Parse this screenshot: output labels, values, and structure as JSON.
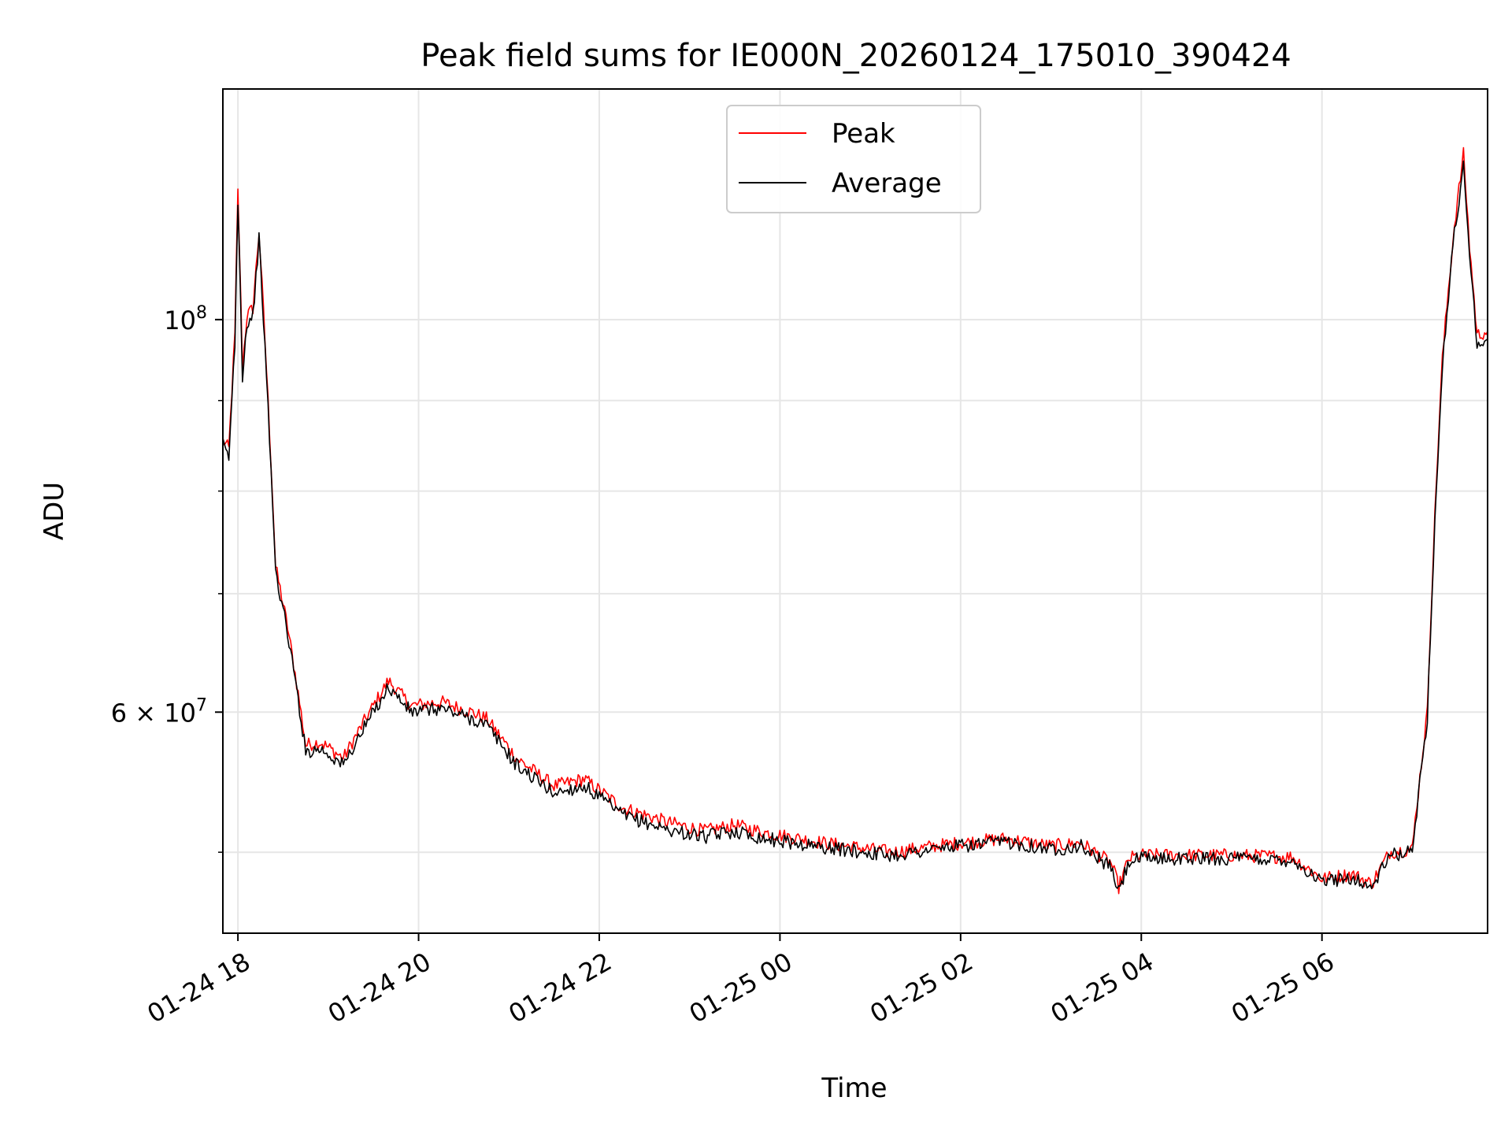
{
  "chart_data": {
    "type": "line",
    "title": "Peak field sums for IE000N_20260124_175010_390424",
    "xlabel": "Time",
    "ylabel": "ADU",
    "y_scale": "log",
    "grid": true,
    "legend_position": "top-center",
    "xlim": [
      "2026-01-24 17:50",
      "2026-01-25 07:50"
    ],
    "ylim": [
      45000000,
      135000000
    ],
    "x_ticks": [
      {
        "value": "2026-01-24 18:00",
        "label": "01-24 18"
      },
      {
        "value": "2026-01-24 20:00",
        "label": "01-24 20"
      },
      {
        "value": "2026-01-24 22:00",
        "label": "01-24 22"
      },
      {
        "value": "2026-01-25 00:00",
        "label": "01-25 00"
      },
      {
        "value": "2026-01-25 02:00",
        "label": "01-25 02"
      },
      {
        "value": "2026-01-25 04:00",
        "label": "01-25 04"
      },
      {
        "value": "2026-01-25 06:00",
        "label": "01-25 06"
      }
    ],
    "y_major_ticks": [
      {
        "value": 100000000,
        "label_base": "10",
        "label_exp": "8"
      },
      {
        "value": 60000000,
        "label_base": "6 × 10",
        "label_exp": "7"
      }
    ],
    "y_minor_ticks": [
      50000000,
      70000000,
      80000000,
      90000000
    ],
    "series": [
      {
        "name": "Peak",
        "color": "#ff0000",
        "points": [
          [
            "2026-01-24 17:50",
            85500000
          ],
          [
            "2026-01-24 17:54",
            84500000
          ],
          [
            "2026-01-24 17:58",
            98000000
          ],
          [
            "2026-01-24 18:00",
            118000000
          ],
          [
            "2026-01-24 18:03",
            94000000
          ],
          [
            "2026-01-24 18:06",
            100500000
          ],
          [
            "2026-01-24 18:10",
            101500000
          ],
          [
            "2026-01-24 18:14",
            112000000
          ],
          [
            "2026-01-24 18:20",
            90000000
          ],
          [
            "2026-01-24 18:25",
            72500000
          ],
          [
            "2026-01-24 18:33",
            67000000
          ],
          [
            "2026-01-24 18:40",
            61500000
          ],
          [
            "2026-01-24 18:45",
            57500000
          ],
          [
            "2026-01-24 18:55",
            57700000
          ],
          [
            "2026-01-24 19:10",
            56500000
          ],
          [
            "2026-01-24 19:25",
            59500000
          ],
          [
            "2026-01-24 19:40",
            62500000
          ],
          [
            "2026-01-24 19:55",
            60500000
          ],
          [
            "2026-01-24 20:15",
            60800000
          ],
          [
            "2026-01-24 20:35",
            60000000
          ],
          [
            "2026-01-24 20:45",
            59500000
          ],
          [
            "2026-01-24 21:05",
            56500000
          ],
          [
            "2026-01-24 21:30",
            54500000
          ],
          [
            "2026-01-24 21:50",
            55000000
          ],
          [
            "2026-01-24 22:15",
            53000000
          ],
          [
            "2026-01-24 22:45",
            52000000
          ],
          [
            "2026-01-24 23:10",
            51400000
          ],
          [
            "2026-01-24 23:30",
            51800000
          ],
          [
            "2026-01-24 23:50",
            51300000
          ],
          [
            "2026-01-25 00:30",
            50600000
          ],
          [
            "2026-01-25 01:15",
            50000000
          ],
          [
            "2026-01-25 01:50",
            50500000
          ],
          [
            "2026-01-25 02:30",
            50900000
          ],
          [
            "2026-01-25 03:00",
            50400000
          ],
          [
            "2026-01-25 03:20",
            50600000
          ],
          [
            "2026-01-25 03:40",
            49300000
          ],
          [
            "2026-01-25 03:45",
            47800000
          ],
          [
            "2026-01-25 03:52",
            49600000
          ],
          [
            "2026-01-25 04:00",
            49800000
          ],
          [
            "2026-01-25 05:00",
            49800000
          ],
          [
            "2026-01-25 05:40",
            49700000
          ],
          [
            "2026-01-25 06:00",
            48300000
          ],
          [
            "2026-01-25 06:20",
            48600000
          ],
          [
            "2026-01-25 06:33",
            48000000
          ],
          [
            "2026-01-25 06:45",
            50000000
          ],
          [
            "2026-01-25 07:00",
            50200000
          ],
          [
            "2026-01-25 07:10",
            60000000
          ],
          [
            "2026-01-25 07:20",
            95000000
          ],
          [
            "2026-01-25 07:28",
            113000000
          ],
          [
            "2026-01-25 07:34",
            124000000
          ],
          [
            "2026-01-25 07:38",
            110000000
          ],
          [
            "2026-01-25 07:43",
            98000000
          ],
          [
            "2026-01-25 07:50",
            98500000
          ]
        ]
      },
      {
        "name": "Average",
        "color": "#000000",
        "points": [
          [
            "2026-01-24 17:50",
            85000000
          ],
          [
            "2026-01-24 17:54",
            83500000
          ],
          [
            "2026-01-24 17:58",
            97000000
          ],
          [
            "2026-01-24 18:00",
            117000000
          ],
          [
            "2026-01-24 18:03",
            93000000
          ],
          [
            "2026-01-24 18:06",
            99500000
          ],
          [
            "2026-01-24 18:10",
            100500000
          ],
          [
            "2026-01-24 18:14",
            111000000
          ],
          [
            "2026-01-24 18:20",
            89000000
          ],
          [
            "2026-01-24 18:25",
            72000000
          ],
          [
            "2026-01-24 18:33",
            66500000
          ],
          [
            "2026-01-24 18:40",
            61000000
          ],
          [
            "2026-01-24 18:45",
            57000000
          ],
          [
            "2026-01-24 18:55",
            57200000
          ],
          [
            "2026-01-24 19:10",
            56000000
          ],
          [
            "2026-01-24 19:25",
            59000000
          ],
          [
            "2026-01-24 19:40",
            62000000
          ],
          [
            "2026-01-24 19:55",
            60000000
          ],
          [
            "2026-01-24 20:15",
            60300000
          ],
          [
            "2026-01-24 20:35",
            59500000
          ],
          [
            "2026-01-24 20:45",
            59000000
          ],
          [
            "2026-01-24 21:05",
            56000000
          ],
          [
            "2026-01-24 21:30",
            54000000
          ],
          [
            "2026-01-24 21:50",
            54500000
          ],
          [
            "2026-01-24 22:15",
            52500000
          ],
          [
            "2026-01-24 22:45",
            51500000
          ],
          [
            "2026-01-24 23:10",
            51000000
          ],
          [
            "2026-01-24 23:30",
            51400000
          ],
          [
            "2026-01-24 23:50",
            50900000
          ],
          [
            "2026-01-25 00:30",
            50300000
          ],
          [
            "2026-01-25 01:15",
            49800000
          ],
          [
            "2026-01-25 01:50",
            50300000
          ],
          [
            "2026-01-25 02:30",
            50700000
          ],
          [
            "2026-01-25 03:00",
            50200000
          ],
          [
            "2026-01-25 03:20",
            50400000
          ],
          [
            "2026-01-25 03:40",
            49000000
          ],
          [
            "2026-01-25 03:45",
            47500000
          ],
          [
            "2026-01-25 03:52",
            49400000
          ],
          [
            "2026-01-25 04:00",
            49600000
          ],
          [
            "2026-01-25 05:00",
            49600000
          ],
          [
            "2026-01-25 05:40",
            49500000
          ],
          [
            "2026-01-25 06:00",
            48100000
          ],
          [
            "2026-01-25 06:20",
            48400000
          ],
          [
            "2026-01-25 06:33",
            47700000
          ],
          [
            "2026-01-25 06:45",
            49800000
          ],
          [
            "2026-01-25 07:00",
            50000000
          ],
          [
            "2026-01-25 07:10",
            59500000
          ],
          [
            "2026-01-25 07:20",
            94000000
          ],
          [
            "2026-01-25 07:28",
            112000000
          ],
          [
            "2026-01-25 07:34",
            122000000
          ],
          [
            "2026-01-25 07:38",
            109000000
          ],
          [
            "2026-01-25 07:43",
            97000000
          ],
          [
            "2026-01-25 07:50",
            97500000
          ]
        ]
      }
    ]
  }
}
